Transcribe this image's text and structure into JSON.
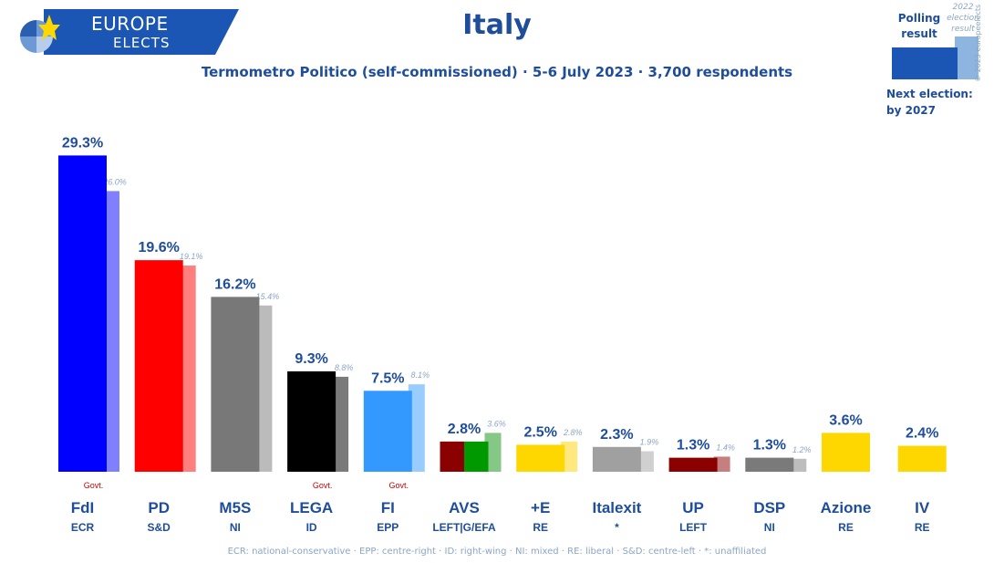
{
  "brand": {
    "line1": "EUROPE",
    "line2": "ELECTS"
  },
  "title": "Italy",
  "subtitle": "Termometro Politico (self-commissioned) · 5-6 July 2023 · 3,700 respondents",
  "legend": {
    "polling_label": "Polling result",
    "election_label": "2022 election result",
    "next_election_label": "Next election:",
    "next_election_value": "by 2027",
    "polling_color": "#1b56b5",
    "election_color": "#8db5e0"
  },
  "copyright": "© 2023 europeelects",
  "footnote": "ECR: national-conservative · EPP: centre-right · ID: right-wing · NI: mixed · RE: liberal · S&D: centre-left · *: unaffiliated",
  "chart_data": {
    "type": "bar",
    "title": "Italy",
    "ylim": [
      0,
      30
    ],
    "categories": [
      "FdI",
      "PD",
      "M5S",
      "LEGA",
      "FI",
      "AVS",
      "+E",
      "Italexit",
      "UP",
      "DSP",
      "Azione",
      "IV"
    ],
    "groups": [
      "ECR",
      "S&D",
      "NI",
      "ID",
      "EPP",
      "LEFT|G/EFA",
      "RE",
      "*",
      "LEFT",
      "NI",
      "RE",
      "RE"
    ],
    "govt_badges": [
      "Govt.",
      "",
      "",
      "Govt.",
      "Govt.",
      "",
      "",
      "",
      "",
      "",
      "",
      ""
    ],
    "series": [
      {
        "name": "Polling result",
        "values": [
          29.3,
          19.6,
          16.2,
          9.3,
          7.5,
          2.8,
          2.5,
          2.3,
          1.3,
          1.3,
          3.6,
          2.4
        ]
      },
      {
        "name": "2022 election result",
        "values": [
          26.0,
          19.1,
          15.4,
          8.8,
          8.1,
          3.6,
          2.8,
          1.9,
          1.4,
          1.2,
          null,
          null
        ]
      }
    ],
    "value_labels": [
      "29.3%",
      "19.6%",
      "16.2%",
      "9.3%",
      "7.5%",
      "2.8%",
      "2.5%",
      "2.3%",
      "1.3%",
      "1.3%",
      "3.6%",
      "2.4%"
    ],
    "prev_labels": [
      "26.0%",
      "19.1%",
      "15.4%",
      "8.8%",
      "8.1%",
      "3.6%",
      "2.8%",
      "1.9%",
      "1.4%",
      "1.2%",
      "",
      ""
    ],
    "colors": [
      "#0000ff",
      "#ff0000",
      "#787878",
      "#000000",
      "#3399ff",
      "#8b0000",
      "#ffd700",
      "#a0a0a0",
      "#8b0000",
      "#7a7a7a",
      "#ffd700",
      "#ffd700"
    ],
    "prev_colors": [
      "#8080ff",
      "#ff7f7f",
      "#bbbbbb",
      "#7a7a7a",
      "#99ccff",
      "#85c785",
      "#ffe880",
      "#d0d0d0",
      "#c57f7f",
      "#bdbdbd",
      "",
      ""
    ],
    "avs_split_colors": [
      "#8b0000",
      "#009900"
    ]
  }
}
